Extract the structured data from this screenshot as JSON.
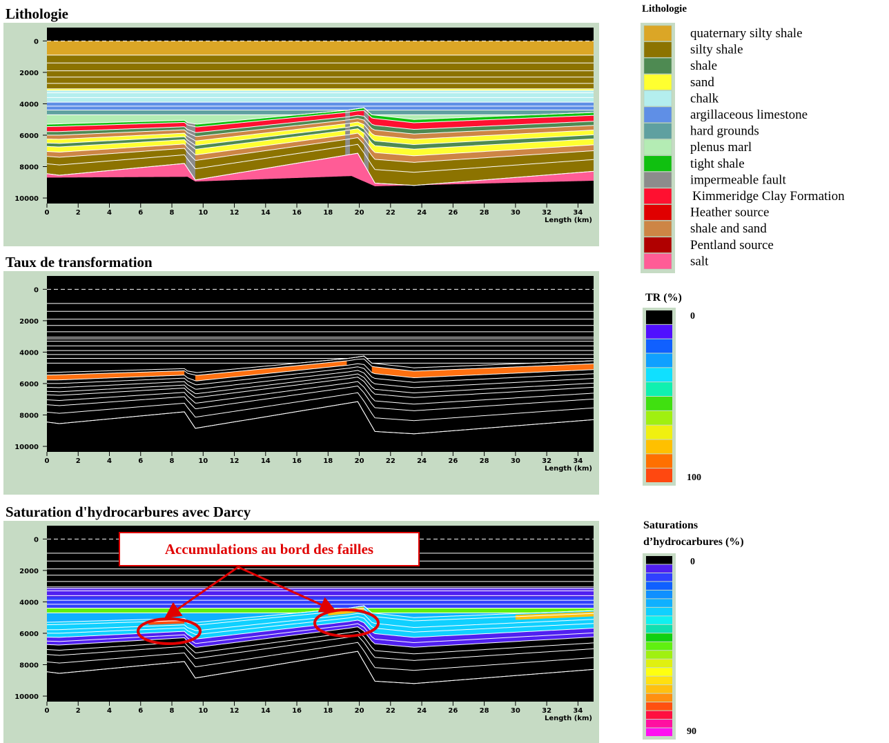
{
  "chart_data": [
    {
      "type": "section",
      "title": "Lithologie",
      "variant": "lithology",
      "xlim": [
        0,
        35
      ],
      "ylim": [
        -850,
        10350
      ],
      "yticks": [
        0,
        2000,
        4000,
        6000,
        8000,
        10000
      ],
      "xticks": [
        0,
        2,
        4,
        6,
        8,
        10,
        12,
        14,
        16,
        18,
        20,
        22,
        24,
        26,
        28,
        30,
        32,
        34
      ],
      "x_label": "Length (km)"
    },
    {
      "type": "section",
      "title": "Taux de transformation",
      "variant": "transformation",
      "xlim": [
        0,
        35
      ],
      "ylim": [
        -850,
        10350
      ],
      "yticks": [
        0,
        2000,
        4000,
        6000,
        8000,
        10000
      ],
      "xticks": [
        0,
        2,
        4,
        6,
        8,
        10,
        12,
        14,
        16,
        18,
        20,
        22,
        24,
        26,
        28,
        30,
        32,
        34
      ],
      "x_label": "Length (km)"
    },
    {
      "type": "section",
      "title": "Saturation d'hydrocarbures avec Darcy",
      "variant": "saturation",
      "xlim": [
        0,
        35
      ],
      "ylim": [
        -850,
        10350
      ],
      "yticks": [
        0,
        2000,
        4000,
        6000,
        8000,
        10000
      ],
      "xticks": [
        0,
        2,
        4,
        6,
        8,
        10,
        12,
        14,
        16,
        18,
        20,
        22,
        24,
        26,
        28,
        30,
        32,
        34
      ],
      "x_label": "Length (km)",
      "annotation": "Accumulations au bord des failles"
    }
  ],
  "legend": {
    "title": "Lithologie",
    "items": [
      {
        "name": "quaternary silty shale",
        "color": "#dba626"
      },
      {
        "name": "silty shale",
        "color": "#8c7300"
      },
      {
        "name": "shale",
        "color": "#4e8a52"
      },
      {
        "name": "sand",
        "color": "#ffff30"
      },
      {
        "name": "chalk",
        "color": "#b4eeee"
      },
      {
        "name": "argillaceous limestone",
        "color": "#5f8fe6"
      },
      {
        "name": "hard grounds",
        "color": "#5fa0a0"
      },
      {
        "name": "plenus marl",
        "color": "#b4ecb4"
      },
      {
        "name": "tight shale",
        "color": "#10c010"
      },
      {
        "name": "impermeable fault",
        "color": "#8c8c8c"
      },
      {
        "name": "Kimmeridge Clay Formation",
        "color": "#ff1030"
      },
      {
        "name": "Heather source",
        "color": "#e00000"
      },
      {
        "name": "shale and sand",
        "color": "#cd8545"
      },
      {
        "name": "Pentland source",
        "color": "#b00000"
      },
      {
        "name": "salt",
        "color": "#ff5c96"
      }
    ]
  },
  "tr_scale": {
    "title": "TR (%)",
    "min": 0,
    "max": 100,
    "colors": [
      "#000000",
      "#5010ff",
      "#1060ff",
      "#10a0ff",
      "#10e0ff",
      "#10f0b0",
      "#40e010",
      "#a0f010",
      "#f0f010",
      "#ffc000",
      "#ff7000",
      "#ff4810"
    ]
  },
  "saturation_scale": {
    "title_lines": [
      "Saturations",
      "d’hydrocarbures (%)"
    ],
    "min": 0,
    "max": 90,
    "colors": [
      "#000000",
      "#5020f0",
      "#3040ff",
      "#1060ff",
      "#1090ff",
      "#10b0ff",
      "#10d0ff",
      "#10f0f0",
      "#10e0b0",
      "#10d010",
      "#60f010",
      "#a0f010",
      "#e0f010",
      "#ffff10",
      "#ffe010",
      "#ffc010",
      "#ff9010",
      "#ff5010",
      "#ff1040",
      "#ff10a0",
      "#ff10f0"
    ]
  }
}
